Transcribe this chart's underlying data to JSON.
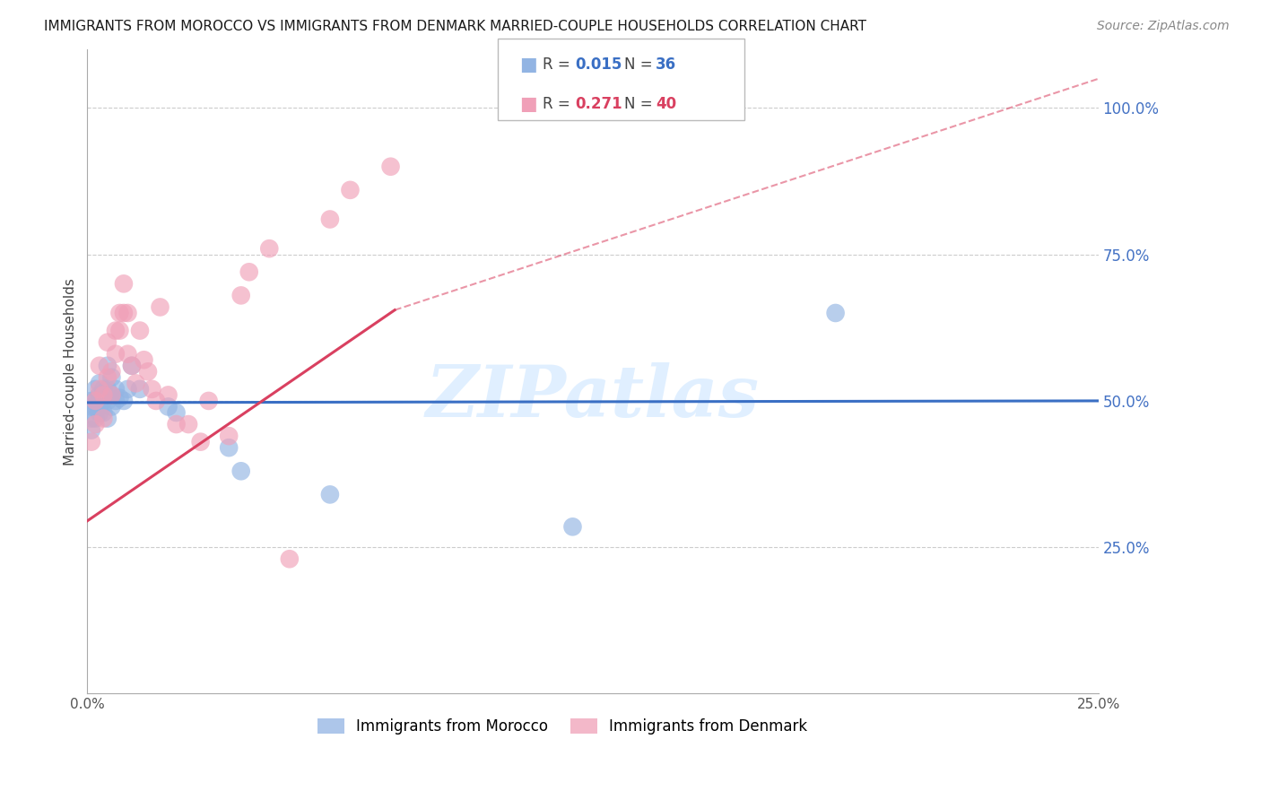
{
  "title": "IMMIGRANTS FROM MOROCCO VS IMMIGRANTS FROM DENMARK MARRIED-COUPLE HOUSEHOLDS CORRELATION CHART",
  "source": "Source: ZipAtlas.com",
  "ylabel": "Married-couple Households",
  "xlim": [
    0.0,
    0.25
  ],
  "ylim": [
    0.0,
    1.1
  ],
  "morocco_R": 0.015,
  "morocco_N": 36,
  "denmark_R": 0.271,
  "denmark_N": 40,
  "morocco_color": "#92b4e3",
  "denmark_color": "#f0a0b8",
  "morocco_line_color": "#3a6fc4",
  "denmark_line_color": "#d94060",
  "right_axis_color": "#4472c4",
  "grid_color": "#cccccc",
  "morocco_x": [
    0.001,
    0.001,
    0.001,
    0.001,
    0.002,
    0.002,
    0.002,
    0.002,
    0.003,
    0.003,
    0.003,
    0.003,
    0.004,
    0.004,
    0.004,
    0.005,
    0.005,
    0.005,
    0.005,
    0.006,
    0.006,
    0.006,
    0.007,
    0.007,
    0.008,
    0.009,
    0.01,
    0.011,
    0.013,
    0.02,
    0.022,
    0.035,
    0.038,
    0.06,
    0.12,
    0.185
  ],
  "morocco_y": [
    0.5,
    0.49,
    0.47,
    0.45,
    0.52,
    0.5,
    0.49,
    0.47,
    0.53,
    0.51,
    0.49,
    0.48,
    0.52,
    0.5,
    0.48,
    0.56,
    0.52,
    0.5,
    0.47,
    0.54,
    0.51,
    0.49,
    0.52,
    0.5,
    0.505,
    0.5,
    0.52,
    0.56,
    0.52,
    0.49,
    0.48,
    0.42,
    0.38,
    0.34,
    0.285,
    0.65
  ],
  "denmark_x": [
    0.001,
    0.002,
    0.002,
    0.003,
    0.003,
    0.004,
    0.004,
    0.005,
    0.005,
    0.006,
    0.006,
    0.007,
    0.007,
    0.008,
    0.008,
    0.009,
    0.009,
    0.01,
    0.01,
    0.011,
    0.012,
    0.013,
    0.014,
    0.015,
    0.016,
    0.017,
    0.018,
    0.02,
    0.022,
    0.025,
    0.028,
    0.03,
    0.035,
    0.038,
    0.04,
    0.045,
    0.05,
    0.06,
    0.065,
    0.075
  ],
  "denmark_y": [
    0.43,
    0.5,
    0.46,
    0.56,
    0.52,
    0.51,
    0.47,
    0.6,
    0.54,
    0.55,
    0.51,
    0.58,
    0.62,
    0.65,
    0.62,
    0.7,
    0.65,
    0.65,
    0.58,
    0.56,
    0.53,
    0.62,
    0.57,
    0.55,
    0.52,
    0.5,
    0.66,
    0.51,
    0.46,
    0.46,
    0.43,
    0.5,
    0.44,
    0.68,
    0.72,
    0.76,
    0.23,
    0.81,
    0.86,
    0.9
  ]
}
